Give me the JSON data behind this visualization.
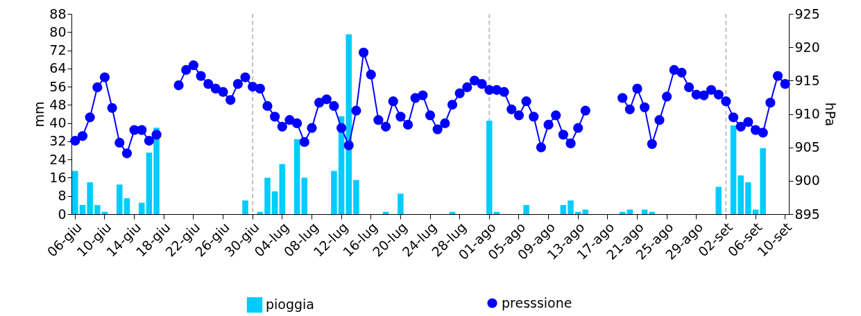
{
  "chart_data": {
    "type": "bar",
    "ylabel": "mm",
    "y2label": "hPa",
    "ylim": [
      0,
      88
    ],
    "yticks": [
      0,
      8,
      16,
      24,
      32,
      40,
      48,
      56,
      64,
      72,
      80,
      88
    ],
    "y2lim": [
      895,
      925
    ],
    "y2ticks": [
      895,
      900,
      905,
      910,
      915,
      920,
      925
    ],
    "legend": "bottom",
    "marker": "circle",
    "categories": [
      "06-giu",
      null,
      null,
      null,
      "10-giu",
      null,
      null,
      null,
      "14-giu",
      null,
      null,
      null,
      "18-giu",
      null,
      null,
      null,
      "22-giu",
      null,
      null,
      null,
      "26-giu",
      null,
      null,
      null,
      "30-giu",
      null,
      null,
      null,
      "04-lug",
      null,
      null,
      null,
      "08-lug",
      null,
      null,
      null,
      "12-lug",
      null,
      null,
      null,
      "16-lug",
      null,
      null,
      null,
      "20-lug",
      null,
      null,
      null,
      "24-lug",
      null,
      null,
      null,
      "28-lug",
      null,
      null,
      null,
      "01-ago",
      null,
      null,
      null,
      "05-ago",
      null,
      null,
      null,
      "09-ago",
      null,
      null,
      null,
      "13-ago",
      null,
      null,
      null,
      "17-ago",
      null,
      null,
      null,
      "21-ago",
      null,
      null,
      null,
      "25-ago",
      null,
      null,
      null,
      "29-ago",
      null,
      null,
      null,
      "02-set",
      null,
      null,
      null,
      "06-set",
      null,
      null,
      null,
      "10-set"
    ],
    "series": [
      {
        "name": "pioggia",
        "color": "#00ccff",
        "values": [
          19,
          4,
          14,
          4,
          1,
          0,
          13,
          7,
          0,
          5,
          27,
          38,
          0,
          0,
          0,
          0,
          0,
          0,
          0,
          0,
          0,
          0,
          0,
          6,
          0,
          1,
          16,
          10,
          22,
          0,
          33,
          16,
          0,
          0,
          0,
          19,
          43,
          79,
          15,
          0,
          0,
          0,
          1,
          0,
          9,
          0,
          0,
          0,
          0,
          0,
          0,
          1,
          0,
          0,
          0,
          0,
          41,
          1,
          0,
          0,
          0,
          4,
          0,
          0,
          0,
          0,
          4,
          6,
          1,
          2,
          0,
          0,
          0,
          0,
          1,
          2,
          0,
          2,
          1,
          0,
          0,
          0,
          0,
          0,
          0,
          0,
          0,
          12,
          0,
          39,
          17,
          14,
          2,
          29,
          0,
          0,
          0
        ]
      },
      {
        "name": "presssione",
        "type": "line",
        "axis": "y2",
        "color": "#0000ff",
        "values": [
          906.0,
          906.7,
          909.5,
          914.0,
          915.5,
          910.9,
          905.7,
          904.1,
          907.6,
          907.6,
          906.0,
          906.9,
          null,
          null,
          914.3,
          916.6,
          917.3,
          915.7,
          914.5,
          913.8,
          913.3,
          912.1,
          914.5,
          915.5,
          914.1,
          913.8,
          911.2,
          909.6,
          908.1,
          909.1,
          908.6,
          905.8,
          907.9,
          911.7,
          912.2,
          911.2,
          907.9,
          905.3,
          910.5,
          919.2,
          915.9,
          909.1,
          908.1,
          911.9,
          909.6,
          908.4,
          912.4,
          912.8,
          909.8,
          907.7,
          908.6,
          911.4,
          913.1,
          914.0,
          915.0,
          914.5,
          913.6,
          913.6,
          913.3,
          910.7,
          909.8,
          911.9,
          909.6,
          905.0,
          908.4,
          909.8,
          906.9,
          905.6,
          907.9,
          910.5,
          null,
          null,
          null,
          null,
          912.4,
          910.7,
          913.8,
          911.0,
          905.5,
          909.1,
          912.6,
          916.6,
          916.2,
          914.0,
          912.9,
          912.8,
          913.6,
          912.9,
          911.9,
          909.5,
          908.1,
          908.8,
          907.6,
          907.2,
          911.7,
          915.7,
          914.5
        ]
      }
    ],
    "ref_lines": [
      {
        "axis": "x",
        "value": "30-giu",
        "color": "#bfbfbf",
        "line_style": "dashed"
      },
      {
        "axis": "x",
        "value": "01-ago",
        "color": "#bfbfbf",
        "line_style": "dashed"
      },
      {
        "axis": "x",
        "value": "02-set",
        "color": "#bfbfbf",
        "line_style": "dashed"
      }
    ]
  }
}
